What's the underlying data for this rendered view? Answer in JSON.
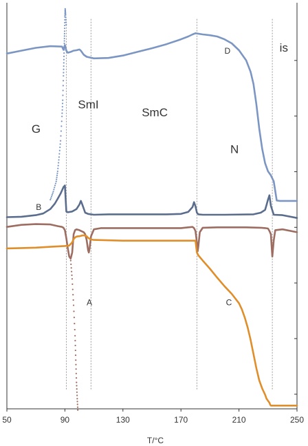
{
  "chart_data": {
    "type": "line",
    "title": "",
    "xlabel": "T/°C",
    "ylabel": "",
    "xlim": [
      50,
      250
    ],
    "ylim": [
      0,
      100
    ],
    "x_ticks": [
      "50",
      "90",
      "130",
      "170",
      "210",
      "250"
    ],
    "x_tick_values": [
      50,
      90,
      130,
      170,
      210,
      250
    ],
    "grid": false,
    "legend": "none",
    "phase_boundaries": [
      91,
      108,
      181,
      233
    ],
    "phase_labels": [
      {
        "text": "G",
        "x": 67,
        "y": 68
      },
      {
        "text": "SmI",
        "x": 99,
        "y": 74
      },
      {
        "text": "SmC",
        "x": 143,
        "y": 72
      },
      {
        "text": "N",
        "x": 204,
        "y": 63
      },
      {
        "text": "is",
        "x": 238,
        "y": 88
      }
    ],
    "curve_labels": [
      {
        "text": "D",
        "x": 200,
        "y": 87.5
      },
      {
        "text": "B",
        "x": 70,
        "y": 49
      },
      {
        "text": "A",
        "x": 105,
        "y": 25.5
      },
      {
        "text": "C",
        "x": 201,
        "y": 25.5
      }
    ],
    "series": [
      {
        "color": "#7b96c2",
        "style": "line",
        "x": [
          50,
          60,
          70,
          80,
          88,
          89,
          90,
          91,
          92,
          94,
          96,
          98,
          100,
          101,
          103,
          105,
          110,
          120,
          130,
          140,
          150,
          160,
          170,
          175,
          178,
          180,
          185,
          190,
          195,
          200,
          205,
          210,
          215,
          218,
          220,
          222,
          224,
          226,
          228,
          230,
          232,
          234,
          236,
          238,
          250
        ],
        "values": [
          87.5,
          88.2,
          88.9,
          89.3,
          89.2,
          88.4,
          89.6,
          88.2,
          87.7,
          87.9,
          88.2,
          88.3,
          88.5,
          88.2,
          87.2,
          86.7,
          86.3,
          86.4,
          87.0,
          87.9,
          88.8,
          89.8,
          91.0,
          91.7,
          92.2,
          92.5,
          92.2,
          92.0,
          91.7,
          91.0,
          90.0,
          88.3,
          85.8,
          83.0,
          80.0,
          75.0,
          69.0,
          64.0,
          60.5,
          58.5,
          57.5,
          56.0,
          51.3,
          51.2,
          51.2
        ]
      },
      {
        "color": "#7b96c2",
        "style": "dots",
        "x": [
          80,
          82,
          84,
          85,
          86,
          87,
          88,
          88.5,
          89,
          89.3,
          89.6,
          89.8,
          90,
          90.2,
          90.5,
          91
        ],
        "values": [
          51.5,
          53.5,
          56.0,
          58.5,
          62.0,
          66.0,
          72.0,
          76.0,
          82.0,
          86.0,
          90.0,
          93.0,
          96.5,
          98.5,
          97.0,
          94.0
        ]
      },
      {
        "color": "#5b6d8c",
        "style": "line",
        "x": [
          50,
          60,
          70,
          75,
          80,
          83,
          85,
          87,
          88,
          89,
          90,
          91,
          92,
          95,
          98,
          100,
          101,
          102,
          104,
          106,
          110,
          120,
          140,
          160,
          170,
          175,
          178,
          179,
          180,
          181,
          182,
          185,
          200,
          220,
          225,
          228,
          229,
          230,
          231,
          232,
          234,
          240,
          250
        ],
        "values": [
          47.2,
          47.3,
          47.7,
          48.1,
          49.2,
          50.5,
          51.7,
          53.0,
          53.8,
          54.6,
          55.0,
          48.6,
          48.4,
          48.6,
          49.2,
          50.3,
          51.2,
          50.3,
          48.3,
          48.0,
          47.8,
          47.9,
          47.9,
          47.9,
          48.0,
          48.5,
          49.7,
          50.9,
          49.9,
          48.3,
          47.9,
          47.8,
          47.8,
          47.9,
          48.3,
          49.0,
          50.2,
          51.5,
          52.6,
          50.0,
          47.8,
          47.7,
          47.0
        ]
      },
      {
        "color": "#9c6d60",
        "style": "line",
        "x": [
          50,
          60,
          70,
          80,
          85,
          88,
          89,
          90,
          91,
          92,
          93,
          94,
          95,
          96,
          97,
          98,
          100,
          103,
          104,
          105,
          106,
          106.5,
          107,
          108,
          110,
          115,
          130,
          150,
          170,
          175,
          178,
          179,
          180,
          181,
          181.5,
          182,
          183,
          185,
          195,
          215,
          225,
          228,
          230,
          231,
          232,
          232.5,
          233,
          234,
          235,
          240,
          250
        ],
        "values": [
          44.8,
          45.3,
          45.5,
          45.4,
          45.0,
          44.8,
          44.6,
          44.0,
          42.0,
          39.5,
          37.5,
          37.0,
          38.5,
          43.0,
          44.0,
          44.2,
          44.0,
          43.5,
          43.0,
          41.5,
          39.0,
          38.5,
          39.5,
          42.5,
          44.2,
          44.5,
          44.5,
          44.5,
          44.5,
          44.7,
          44.8,
          44.5,
          43.8,
          41.0,
          38.8,
          40.0,
          43.5,
          44.6,
          44.7,
          44.7,
          44.6,
          44.5,
          44.4,
          43.8,
          43.0,
          40.0,
          37.5,
          41.5,
          44.0,
          44.2,
          43.5
        ]
      },
      {
        "color": "#9c6d60",
        "style": "dots",
        "x": [
          94,
          95,
          96,
          97,
          97.5,
          98,
          98.5,
          99
        ],
        "values": [
          36.5,
          32.0,
          25.5,
          18.0,
          12.0,
          6.5,
          2.5,
          -1.0
        ]
      },
      {
        "color": "#e08e2a",
        "style": "line",
        "x": [
          50,
          60,
          70,
          80,
          90,
          93,
          95,
          96,
          97,
          98,
          99,
          100,
          102,
          104,
          105,
          106,
          108,
          110,
          130,
          150,
          170,
          178,
          180,
          181,
          182,
          185,
          190,
          195,
          200,
          205,
          210,
          212,
          214,
          216,
          218,
          220,
          222,
          224,
          226,
          228,
          229,
          230,
          231,
          231.5,
          232,
          235,
          240,
          250
        ],
        "values": [
          39.5,
          39.6,
          39.7,
          39.9,
          40.1,
          40.2,
          41.0,
          41.8,
          42.2,
          42.4,
          42.5,
          42.5,
          42.7,
          42.7,
          42.5,
          42.1,
          41.7,
          41.6,
          41.4,
          41.4,
          41.4,
          41.4,
          41.4,
          38.5,
          37.8,
          36.5,
          34.5,
          32.3,
          30.2,
          28.3,
          26.0,
          24.5,
          22.5,
          20.0,
          17.0,
          13.5,
          10.0,
          7.0,
          5.0,
          3.5,
          2.5,
          2.0,
          1.5,
          1.0,
          0.8,
          0.8,
          0.8,
          0.8
        ]
      }
    ]
  }
}
